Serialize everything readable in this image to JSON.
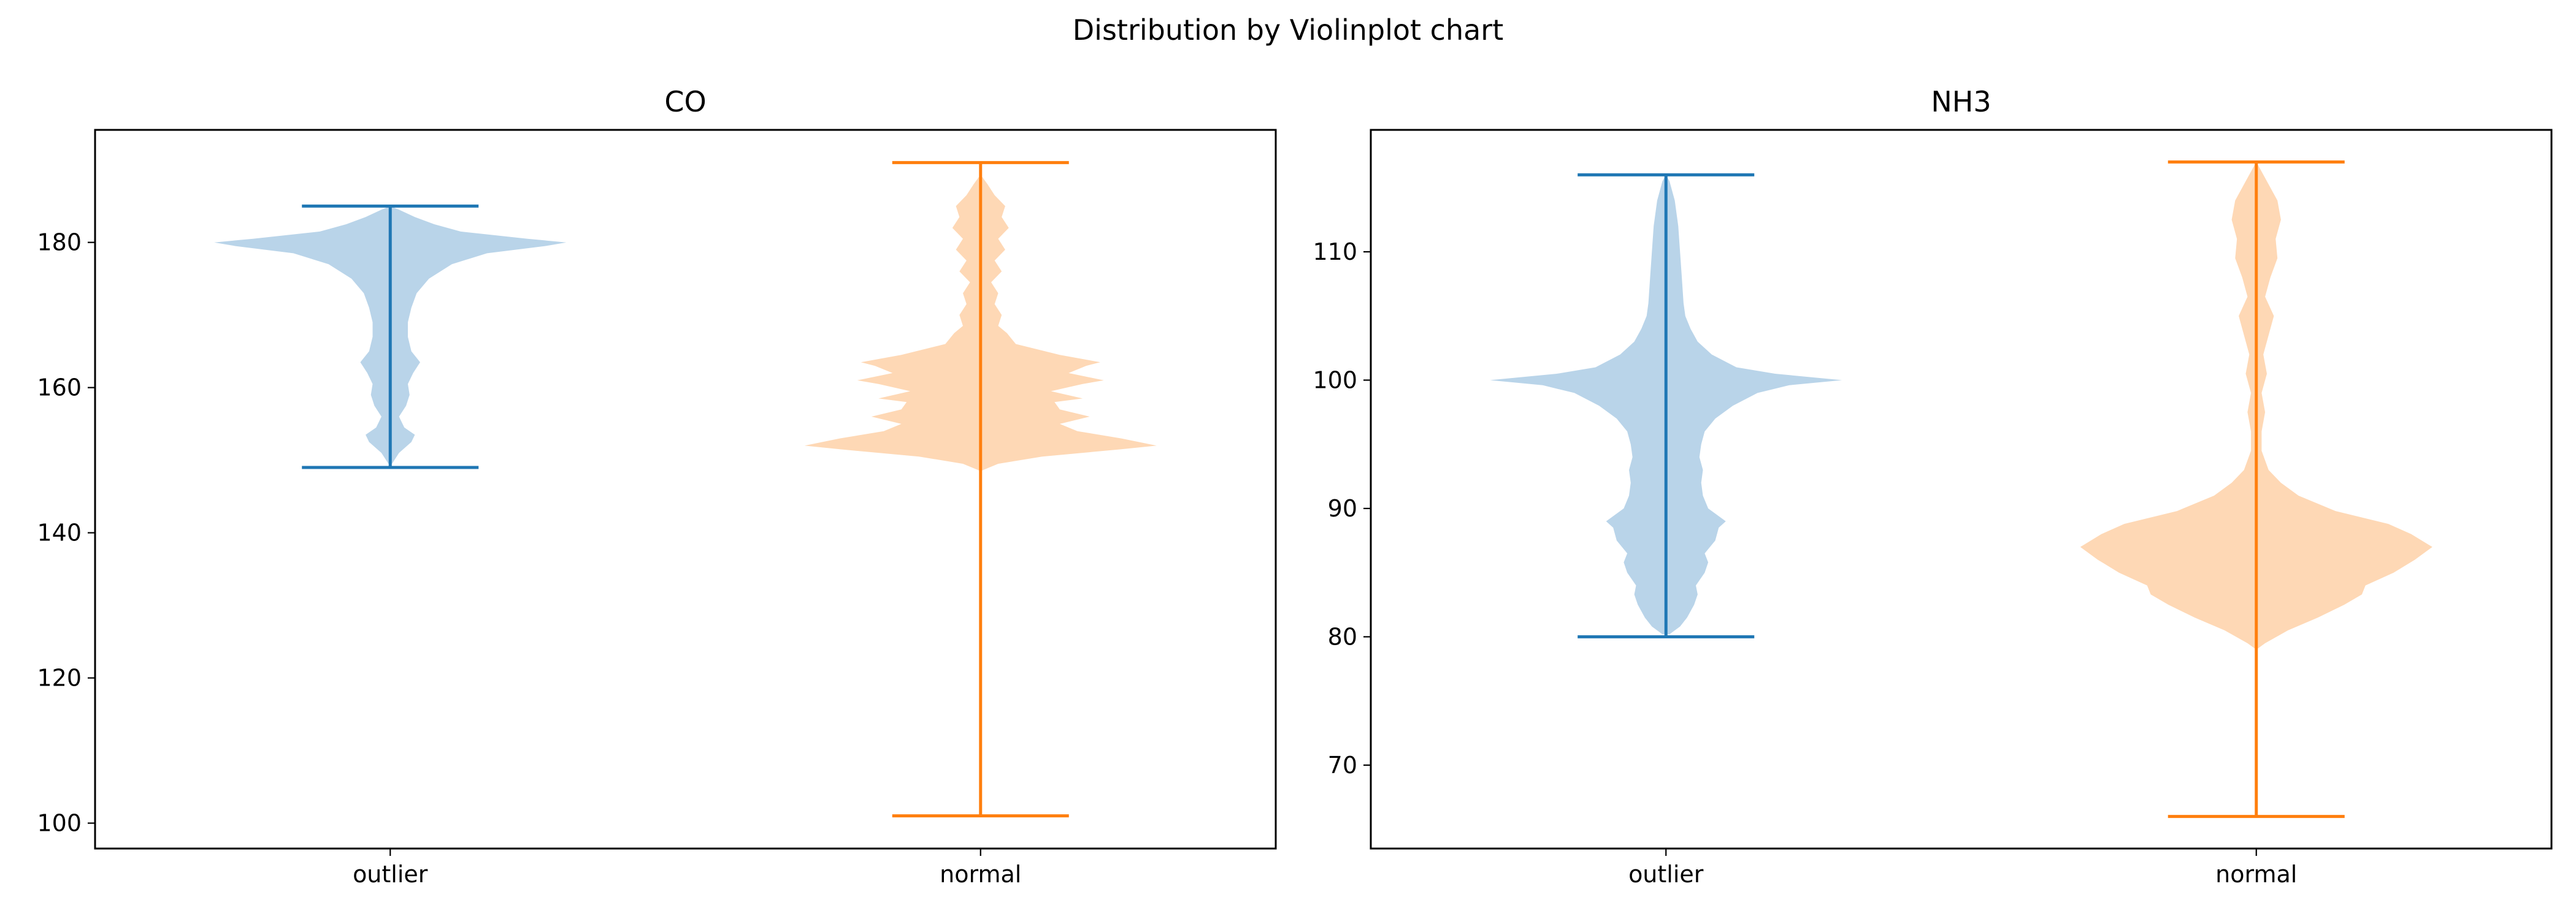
{
  "figure": {
    "suptitle": "Distribution by Violinplot chart"
  },
  "chart_data": [
    {
      "type": "violin",
      "title": "CO",
      "categories": [
        "outlier",
        "normal"
      ],
      "ylim": [
        96.5,
        195.5
      ],
      "yticks": [
        100,
        120,
        140,
        160,
        180
      ],
      "grid": false,
      "series": [
        {
          "category": "outlier",
          "color": "#1f77b4",
          "fill": "#b9d4e9",
          "min": 149,
          "max": 185,
          "density": [
            [
              149.5,
              0.01
            ],
            [
              151,
              0.05
            ],
            [
              152.5,
              0.12
            ],
            [
              153.5,
              0.14
            ],
            [
              154.5,
              0.08
            ],
            [
              156,
              0.05
            ],
            [
              157.5,
              0.09
            ],
            [
              159,
              0.11
            ],
            [
              160.5,
              0.1
            ],
            [
              162,
              0.13
            ],
            [
              163.5,
              0.17
            ],
            [
              165,
              0.12
            ],
            [
              167,
              0.1
            ],
            [
              169,
              0.1
            ],
            [
              171,
              0.12
            ],
            [
              173,
              0.15
            ],
            [
              175,
              0.22
            ],
            [
              177,
              0.35
            ],
            [
              178.5,
              0.55
            ],
            [
              179.5,
              0.88
            ],
            [
              180,
              1.0
            ],
            [
              180.5,
              0.78
            ],
            [
              181.5,
              0.4
            ],
            [
              182.5,
              0.25
            ],
            [
              183.5,
              0.14
            ],
            [
              184.5,
              0.05
            ],
            [
              185,
              0.0
            ]
          ]
        },
        {
          "category": "normal",
          "color": "#ff7f0e",
          "fill": "#fed8b5",
          "min": 101,
          "max": 191,
          "density": [
            [
              148.5,
              0.0
            ],
            [
              149.5,
              0.1
            ],
            [
              150.5,
              0.35
            ],
            [
              151.5,
              0.8
            ],
            [
              152,
              1.0
            ],
            [
              153,
              0.8
            ],
            [
              154,
              0.55
            ],
            [
              155,
              0.45
            ],
            [
              156,
              0.62
            ],
            [
              157,
              0.45
            ],
            [
              158,
              0.42
            ],
            [
              158.5,
              0.58
            ],
            [
              159.5,
              0.4
            ],
            [
              160.5,
              0.58
            ],
            [
              161,
              0.7
            ],
            [
              162,
              0.5
            ],
            [
              163,
              0.6
            ],
            [
              163.5,
              0.68
            ],
            [
              164.5,
              0.45
            ],
            [
              166,
              0.2
            ],
            [
              167.5,
              0.15
            ],
            [
              168.5,
              0.1
            ],
            [
              170,
              0.12
            ],
            [
              171.5,
              0.08
            ],
            [
              173,
              0.1
            ],
            [
              174.5,
              0.06
            ],
            [
              176,
              0.12
            ],
            [
              177.5,
              0.08
            ],
            [
              179,
              0.14
            ],
            [
              180.5,
              0.1
            ],
            [
              182,
              0.16
            ],
            [
              183.5,
              0.12
            ],
            [
              185,
              0.14
            ],
            [
              186.5,
              0.08
            ],
            [
              188,
              0.04
            ],
            [
              189,
              0.01
            ]
          ]
        }
      ]
    },
    {
      "type": "violin",
      "title": "NH3",
      "categories": [
        "outlier",
        "normal"
      ],
      "ylim": [
        63.5,
        119.5
      ],
      "yticks": [
        70,
        80,
        90,
        100,
        110
      ],
      "grid": false,
      "series": [
        {
          "category": "outlier",
          "color": "#1f77b4",
          "fill": "#b9d4e9",
          "min": 80,
          "max": 116,
          "density": [
            [
              80.2,
              0.02
            ],
            [
              80.8,
              0.08
            ],
            [
              81.5,
              0.12
            ],
            [
              82.5,
              0.16
            ],
            [
              83.3,
              0.18
            ],
            [
              84,
              0.17
            ],
            [
              85,
              0.22
            ],
            [
              85.8,
              0.24
            ],
            [
              86.5,
              0.22
            ],
            [
              87.5,
              0.28
            ],
            [
              88.5,
              0.3
            ],
            [
              89,
              0.34
            ],
            [
              90,
              0.24
            ],
            [
              91,
              0.21
            ],
            [
              92,
              0.2
            ],
            [
              93,
              0.21
            ],
            [
              94,
              0.19
            ],
            [
              95,
              0.2
            ],
            [
              96,
              0.22
            ],
            [
              97,
              0.28
            ],
            [
              98,
              0.38
            ],
            [
              99,
              0.52
            ],
            [
              99.6,
              0.7
            ],
            [
              100,
              1.0
            ],
            [
              100.5,
              0.62
            ],
            [
              101,
              0.4
            ],
            [
              102,
              0.26
            ],
            [
              103,
              0.18
            ],
            [
              104,
              0.14
            ],
            [
              105,
              0.11
            ],
            [
              106,
              0.1
            ],
            [
              108,
              0.09
            ],
            [
              110,
              0.08
            ],
            [
              112,
              0.07
            ],
            [
              114,
              0.05
            ],
            [
              115.5,
              0.02
            ],
            [
              116,
              0.0
            ]
          ]
        },
        {
          "category": "normal",
          "color": "#ff7f0e",
          "fill": "#fed8b5",
          "min": 66,
          "max": 117,
          "density": [
            [
              79,
              0.0
            ],
            [
              79.5,
              0.05
            ],
            [
              80.5,
              0.18
            ],
            [
              81.5,
              0.35
            ],
            [
              82.5,
              0.5
            ],
            [
              83.3,
              0.6
            ],
            [
              84,
              0.62
            ],
            [
              85,
              0.78
            ],
            [
              86,
              0.9
            ],
            [
              87,
              1.0
            ],
            [
              88,
              0.88
            ],
            [
              88.8,
              0.75
            ],
            [
              89.8,
              0.45
            ],
            [
              91,
              0.24
            ],
            [
              92,
              0.14
            ],
            [
              93,
              0.07
            ],
            [
              94.5,
              0.03
            ],
            [
              96,
              0.03
            ],
            [
              97.5,
              0.05
            ],
            [
              99,
              0.03
            ],
            [
              100.5,
              0.06
            ],
            [
              102,
              0.04
            ],
            [
              103.5,
              0.07
            ],
            [
              105,
              0.1
            ],
            [
              106.5,
              0.05
            ],
            [
              108,
              0.08
            ],
            [
              109.5,
              0.12
            ],
            [
              111,
              0.11
            ],
            [
              112.5,
              0.14
            ],
            [
              114,
              0.12
            ],
            [
              115.5,
              0.06
            ],
            [
              116.5,
              0.02
            ],
            [
              117,
              0.0
            ]
          ]
        }
      ]
    }
  ]
}
